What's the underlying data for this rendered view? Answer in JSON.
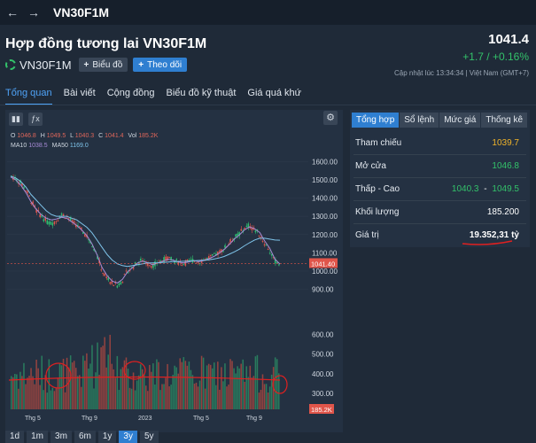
{
  "topbar": {
    "back_icon": "arrow-left-icon",
    "forward_icon": "arrow-right-icon",
    "title": "VN30F1M"
  },
  "header": {
    "title": "Hợp đồng tương lai VN30F1M",
    "symbol": "VN30F1M",
    "chart_button": "Biểu đồ",
    "follow_button": "Theo dõi",
    "price": "1041.4",
    "change": "+1.7 / +0.16%",
    "updated": "Cập nhật lúc  13:34:34 | Việt Nam (GMT+7)",
    "colors": {
      "up": "#33c26a",
      "accent": "#2f7fd1"
    }
  },
  "tabs": [
    "Tổng quan",
    "Bài viết",
    "Cộng đồng",
    "Biểu đồ kỹ thuật",
    "Giá quá khứ"
  ],
  "chart": {
    "ohlc": {
      "o_label": "O",
      "o": "1046.8",
      "h_label": "H",
      "h": "1049.5",
      "l_label": "L",
      "l": "1040.3",
      "c_label": "C",
      "c": "1041.4",
      "vol_label": "Vol",
      "vol": "185.2K"
    },
    "ma": {
      "ma10_label": "MA10",
      "ma10": "1038.5",
      "ma50_label": "MA50",
      "ma50": "1169.0"
    },
    "last_price_tag": "1041.40",
    "last_volume_tag": "185.2K",
    "range_buttons": [
      "1d",
      "1m",
      "3m",
      "6m",
      "1y",
      "3y",
      "5y"
    ],
    "active_range": "3y"
  },
  "chart_data": {
    "type": "candlestick",
    "price_axis": {
      "ticks": [
        900,
        1000,
        1100,
        1200,
        1300,
        1400,
        1500,
        1600
      ],
      "labels": [
        "900.00",
        "1000.00",
        "1100.00",
        "1200.00",
        "1300.00",
        "1400.00",
        "1500.00",
        "1600.00"
      ],
      "range": [
        840,
        1640
      ]
    },
    "volume_axis": {
      "ticks": [
        300,
        400,
        500,
        600
      ],
      "labels": [
        "300.00",
        "400.00",
        "500.00",
        "600.00"
      ],
      "range": [
        220,
        660
      ]
    },
    "x_labels": [
      "Thg 5",
      "Thg 9",
      "2023",
      "Thg 5",
      "Thg 9"
    ],
    "price_path": [
      1520,
      1500,
      1480,
      1440,
      1380,
      1330,
      1300,
      1270,
      1260,
      1280,
      1310,
      1300,
      1270,
      1250,
      1220,
      1190,
      1150,
      1080,
      1000,
      960,
      930,
      920,
      950,
      1000,
      1020,
      1050,
      1060,
      1040,
      1030,
      1050,
      1060,
      1070,
      1060,
      1050,
      1040,
      1050,
      1060,
      1050,
      1060,
      1070,
      1080,
      1100,
      1120,
      1150,
      1180,
      1200,
      1230,
      1250,
      1230,
      1210,
      1160,
      1120,
      1060,
      1041
    ],
    "ma50_path": [
      1520,
      1510,
      1490,
      1460,
      1420,
      1390,
      1360,
      1330,
      1310,
      1300,
      1300,
      1300,
      1290,
      1280,
      1260,
      1240,
      1210,
      1170,
      1130,
      1090,
      1060,
      1040,
      1030,
      1025,
      1030,
      1035,
      1040,
      1045,
      1045,
      1045,
      1048,
      1050,
      1052,
      1053,
      1054,
      1055,
      1056,
      1058,
      1060,
      1062,
      1066,
      1072,
      1080,
      1092,
      1105,
      1120,
      1138,
      1155,
      1170,
      1180,
      1180,
      1175,
      1170,
      1169
    ],
    "ma10_path": [
      1515,
      1500,
      1470,
      1430,
      1380,
      1340,
      1310,
      1290,
      1280,
      1285,
      1295,
      1290,
      1270,
      1250,
      1225,
      1195,
      1150,
      1090,
      1020,
      975,
      945,
      935,
      955,
      995,
      1020,
      1045,
      1055,
      1045,
      1035,
      1045,
      1055,
      1065,
      1060,
      1050,
      1045,
      1050,
      1058,
      1052,
      1058,
      1068,
      1080,
      1098,
      1118,
      1145,
      1175,
      1198,
      1225,
      1242,
      1232,
      1212,
      1165,
      1125,
      1066,
      1038.5
    ]
  },
  "overview": {
    "tabs": [
      "Tổng hợp",
      "Sổ lệnh",
      "Mức giá",
      "Thống kê"
    ],
    "active_tab": "Tổng hợp",
    "rows": [
      {
        "label": "Tham chiếu",
        "value": "1039.7",
        "color": "#f0b429"
      },
      {
        "label": "Mở cửa",
        "value": "1046.8",
        "color": "#33c26a"
      },
      {
        "label": "Thấp - Cao",
        "low": "1040.3",
        "sep": "-",
        "high": "1049.5",
        "color": "#33c26a"
      },
      {
        "label": "Khối lượng",
        "value": "185.200",
        "color": "#ffffff"
      },
      {
        "label": "Giá trị",
        "value": "19.352,31 tỷ",
        "color": "#ffffff"
      }
    ]
  }
}
